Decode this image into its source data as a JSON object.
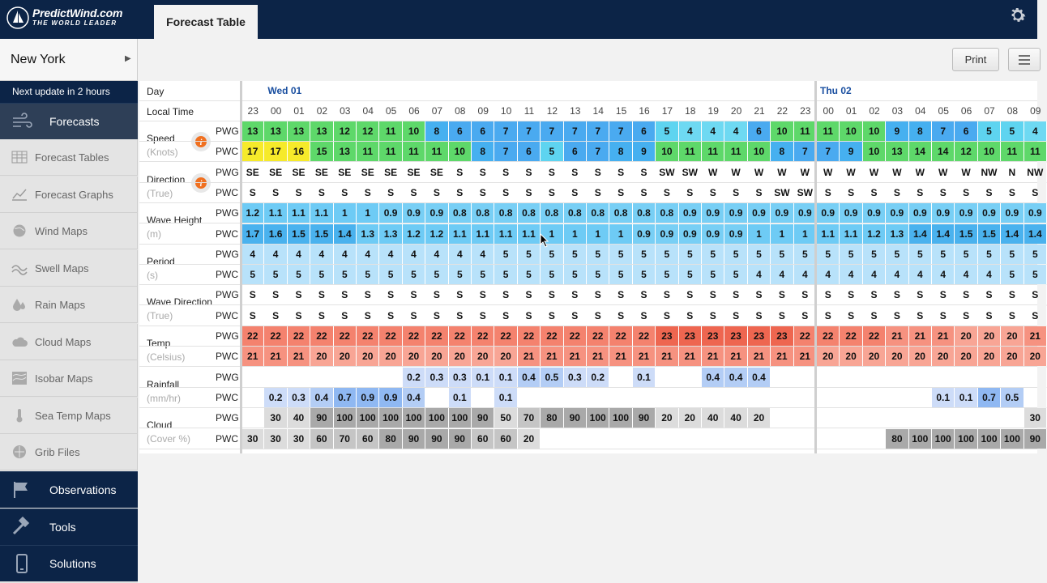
{
  "app": {
    "logo_text": "PredictWind.com",
    "logo_sub": "THE WORLD LEADER",
    "tab": "Forecast Table"
  },
  "sidebar": {
    "location": "New York",
    "next_update": "Next update in 2 hours",
    "top": {
      "label": "Forecasts",
      "icon": "wind-icon"
    },
    "items": [
      {
        "label": "Forecast Tables",
        "icon": "table-icon"
      },
      {
        "label": "Forecast Graphs",
        "icon": "graph-icon"
      },
      {
        "label": "Wind Maps",
        "icon": "globe-icon"
      },
      {
        "label": "Swell Maps",
        "icon": "swell-icon"
      },
      {
        "label": "Rain Maps",
        "icon": "rain-drop-icon"
      },
      {
        "label": "Cloud Maps",
        "icon": "cloud-icon"
      },
      {
        "label": "Isobar Maps",
        "icon": "isobar-icon"
      },
      {
        "label": "Sea Temp Maps",
        "icon": "thermometer-icon"
      },
      {
        "label": "Grib Files",
        "icon": "grib-icon"
      }
    ],
    "bottom": [
      {
        "label": "Observations",
        "icon": "flag-icon"
      },
      {
        "label": "Tools",
        "icon": "hammer-icon"
      },
      {
        "label": "Solutions",
        "icon": "phone-icon"
      }
    ]
  },
  "toolbar": {
    "print": "Print"
  },
  "table": {
    "day_label": "Day",
    "time_label": "Local Time",
    "days": [
      {
        "label": "Wed 01",
        "start": 1
      },
      {
        "label": "Thu 02",
        "start": 25
      }
    ],
    "hours": [
      "23",
      "00",
      "01",
      "02",
      "03",
      "04",
      "05",
      "06",
      "07",
      "08",
      "09",
      "10",
      "11",
      "12",
      "13",
      "14",
      "15",
      "16",
      "17",
      "18",
      "19",
      "20",
      "21",
      "22",
      "23",
      "00",
      "01",
      "02",
      "03",
      "04",
      "05",
      "06",
      "07",
      "08",
      "09"
    ],
    "groups": [
      {
        "title": "Speed",
        "unit": "(Knots)",
        "info": true,
        "type": "speed",
        "rows": [
          {
            "src": "PWG",
            "vals": [
              "13",
              "13",
              "13",
              "13",
              "12",
              "12",
              "11",
              "10",
              "8",
              "6",
              "6",
              "7",
              "7",
              "7",
              "7",
              "7",
              "7",
              "6",
              "5",
              "4",
              "4",
              "4",
              "6",
              "10",
              "11",
              "11",
              "10",
              "10",
              "9",
              "8",
              "7",
              "6",
              "5",
              "5",
              "4"
            ]
          },
          {
            "src": "PWC",
            "vals": [
              "17",
              "17",
              "16",
              "15",
              "13",
              "11",
              "11",
              "11",
              "11",
              "10",
              "8",
              "7",
              "6",
              "5",
              "6",
              "7",
              "8",
              "9",
              "10",
              "11",
              "11",
              "11",
              "10",
              "8",
              "7",
              "7",
              "9",
              "10",
              "13",
              "14",
              "14",
              "12",
              "10",
              "11",
              "11"
            ]
          }
        ]
      },
      {
        "title": "Direction",
        "unit": "(True)",
        "info": true,
        "type": "plain",
        "rows": [
          {
            "src": "PWG",
            "vals": [
              "SE",
              "SE",
              "SE",
              "SE",
              "SE",
              "SE",
              "SE",
              "SE",
              "SE",
              "S",
              "S",
              "S",
              "S",
              "S",
              "S",
              "S",
              "S",
              "S",
              "SW",
              "SW",
              "W",
              "W",
              "W",
              "W",
              "W",
              "W",
              "W",
              "W",
              "W",
              "W",
              "W",
              "W",
              "NW",
              "N",
              "NW"
            ]
          },
          {
            "src": "PWC",
            "vals": [
              "S",
              "S",
              "S",
              "S",
              "S",
              "S",
              "S",
              "S",
              "S",
              "S",
              "S",
              "S",
              "S",
              "S",
              "S",
              "S",
              "S",
              "S",
              "S",
              "S",
              "S",
              "S",
              "S",
              "SW",
              "SW",
              "S",
              "S",
              "S",
              "S",
              "S",
              "S",
              "S",
              "S",
              "S",
              "S"
            ]
          }
        ]
      },
      {
        "title": "Wave Height",
        "unit": "(m)",
        "info": false,
        "type": "wave",
        "rows": [
          {
            "src": "PWG",
            "vals": [
              "1.2",
              "1.1",
              "1.1",
              "1.1",
              "1",
              "1",
              "0.9",
              "0.9",
              "0.9",
              "0.8",
              "0.8",
              "0.8",
              "0.8",
              "0.8",
              "0.8",
              "0.8",
              "0.8",
              "0.8",
              "0.8",
              "0.9",
              "0.9",
              "0.9",
              "0.9",
              "0.9",
              "0.9",
              "0.9",
              "0.9",
              "0.9",
              "0.9",
              "0.9",
              "0.9",
              "0.9",
              "0.9",
              "0.9",
              "0.9"
            ]
          },
          {
            "src": "PWC",
            "vals": [
              "1.7",
              "1.6",
              "1.5",
              "1.5",
              "1.4",
              "1.3",
              "1.3",
              "1.2",
              "1.2",
              "1.1",
              "1.1",
              "1.1",
              "1.1",
              "1",
              "1",
              "1",
              "1",
              "0.9",
              "0.9",
              "0.9",
              "0.9",
              "0.9",
              "1",
              "1",
              "1",
              "1.1",
              "1.1",
              "1.2",
              "1.3",
              "1.4",
              "1.4",
              "1.5",
              "1.5",
              "1.4",
              "1.4"
            ]
          }
        ]
      },
      {
        "title": "Period",
        "unit": "(s)",
        "info": false,
        "type": "period",
        "rows": [
          {
            "src": "PWG",
            "vals": [
              "4",
              "4",
              "4",
              "4",
              "4",
              "4",
              "4",
              "4",
              "4",
              "4",
              "4",
              "5",
              "5",
              "5",
              "5",
              "5",
              "5",
              "5",
              "5",
              "5",
              "5",
              "5",
              "5",
              "5",
              "5",
              "5",
              "5",
              "5",
              "5",
              "5",
              "5",
              "5",
              "5",
              "5",
              "5"
            ]
          },
          {
            "src": "PWC",
            "vals": [
              "5",
              "5",
              "5",
              "5",
              "5",
              "5",
              "5",
              "5",
              "5",
              "5",
              "5",
              "5",
              "5",
              "5",
              "5",
              "5",
              "5",
              "5",
              "5",
              "5",
              "5",
              "5",
              "4",
              "4",
              "4",
              "4",
              "4",
              "4",
              "4",
              "4",
              "4",
              "4",
              "4",
              "5",
              "5"
            ]
          }
        ]
      },
      {
        "title": "Wave Direction",
        "unit": "(True)",
        "info": false,
        "type": "plain",
        "rows": [
          {
            "src": "PWG",
            "vals": [
              "S",
              "S",
              "S",
              "S",
              "S",
              "S",
              "S",
              "S",
              "S",
              "S",
              "S",
              "S",
              "S",
              "S",
              "S",
              "S",
              "S",
              "S",
              "S",
              "S",
              "S",
              "S",
              "S",
              "S",
              "S",
              "S",
              "S",
              "S",
              "S",
              "S",
              "S",
              "S",
              "S",
              "S",
              "S"
            ]
          },
          {
            "src": "PWC",
            "vals": [
              "S",
              "S",
              "S",
              "S",
              "S",
              "S",
              "S",
              "S",
              "S",
              "S",
              "S",
              "S",
              "S",
              "S",
              "S",
              "S",
              "S",
              "S",
              "S",
              "S",
              "S",
              "S",
              "S",
              "S",
              "S",
              "S",
              "S",
              "S",
              "S",
              "S",
              "S",
              "S",
              "S",
              "S",
              "S"
            ]
          }
        ]
      },
      {
        "title": "Temp",
        "unit": "(Celsius)",
        "info": false,
        "type": "temp",
        "rows": [
          {
            "src": "PWG",
            "vals": [
              "22",
              "22",
              "22",
              "22",
              "22",
              "22",
              "22",
              "22",
              "22",
              "22",
              "22",
              "22",
              "22",
              "22",
              "22",
              "22",
              "22",
              "22",
              "23",
              "23",
              "23",
              "23",
              "23",
              "23",
              "22",
              "22",
              "22",
              "22",
              "21",
              "21",
              "21",
              "20",
              "20",
              "20",
              "21"
            ]
          },
          {
            "src": "PWC",
            "vals": [
              "21",
              "21",
              "21",
              "20",
              "20",
              "20",
              "20",
              "20",
              "20",
              "20",
              "20",
              "20",
              "21",
              "21",
              "21",
              "21",
              "21",
              "21",
              "21",
              "21",
              "21",
              "21",
              "21",
              "21",
              "21",
              "20",
              "20",
              "20",
              "20",
              "20",
              "20",
              "20",
              "20",
              "20",
              "20"
            ]
          }
        ]
      },
      {
        "title": "Rainfall",
        "unit": "(mm/hr)",
        "info": false,
        "type": "rain",
        "rows": [
          {
            "src": "PWG",
            "vals": [
              "",
              "",
              "",
              "",
              "",
              "",
              "",
              "0.2",
              "0.3",
              "0.3",
              "0.1",
              "0.1",
              "0.4",
              "0.5",
              "0.3",
              "0.2",
              "",
              "0.1",
              "",
              "",
              "0.4",
              "0.4",
              "0.4",
              "",
              "",
              "",
              "",
              "",
              "",
              "",
              "",
              "",
              "",
              "",
              ""
            ]
          },
          {
            "src": "PWC",
            "vals": [
              "",
              "0.2",
              "0.3",
              "0.4",
              "0.7",
              "0.9",
              "0.9",
              "0.4",
              "",
              "0.1",
              "",
              "0.1",
              "",
              "",
              "",
              "",
              "",
              "",
              "",
              "",
              "",
              "",
              "",
              "",
              "",
              "",
              "",
              "",
              "",
              "",
              "0.1",
              "0.1",
              "0.7",
              "0.5",
              ""
            ]
          }
        ]
      },
      {
        "title": "Cloud",
        "unit": "(Cover %)",
        "info": false,
        "type": "cloud",
        "rows": [
          {
            "src": "PWG",
            "vals": [
              "",
              "30",
              "40",
              "90",
              "100",
              "100",
              "100",
              "100",
              "100",
              "100",
              "90",
              "50",
              "70",
              "80",
              "90",
              "100",
              "100",
              "90",
              "20",
              "20",
              "40",
              "40",
              "20",
              "",
              "",
              "",
              "",
              "",
              "",
              "",
              "",
              "",
              "",
              "",
              "30"
            ]
          },
          {
            "src": "PWC",
            "vals": [
              "30",
              "30",
              "30",
              "60",
              "70",
              "60",
              "80",
              "90",
              "90",
              "90",
              "60",
              "60",
              "20",
              "",
              "",
              "",
              "",
              "",
              "",
              "",
              "",
              "",
              "",
              "",
              "",
              "",
              "",
              "",
              "80",
              "100",
              "100",
              "100",
              "100",
              "100",
              "90"
            ]
          }
        ]
      }
    ]
  },
  "colors": {
    "topbar": "#0c2447",
    "day_header": "#1a4fa0"
  }
}
